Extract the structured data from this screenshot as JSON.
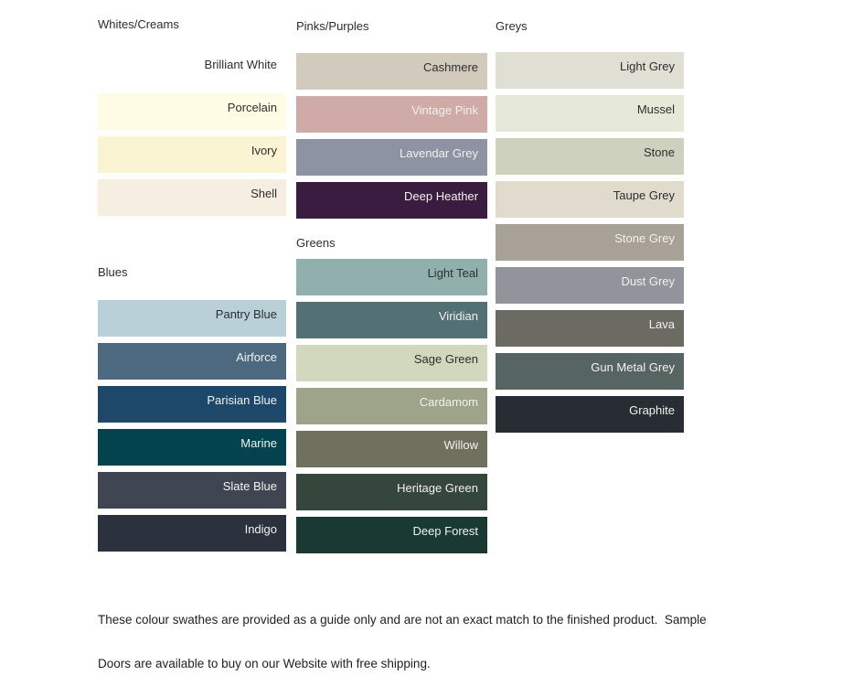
{
  "columns": [
    {
      "sections": [
        {
          "id": "whites-creams",
          "title": "Whites/Creams",
          "swatches": [
            {
              "name": "Brilliant White",
              "color": "#ffffff",
              "label_color": "#2e2e2e"
            },
            {
              "name": "Porcelain",
              "color": "#fefce4",
              "label_color": "#2e2e2e"
            },
            {
              "name": "Ivory",
              "color": "#faf4d2",
              "label_color": "#2e2e2e"
            },
            {
              "name": "Shell",
              "color": "#f6efe1",
              "label_color": "#2e2e2e"
            }
          ]
        },
        {
          "id": "blues",
          "title": "Blues",
          "swatches": [
            {
              "name": "Pantry Blue",
              "color": "#b9d0d9",
              "label_color": "#2e2e2e"
            },
            {
              "name": "Airforce",
              "color": "#4d6980",
              "label_color": "#f2f1ef"
            },
            {
              "name": "Parisian Blue",
              "color": "#1e4869",
              "label_color": "#f2f1ef"
            },
            {
              "name": "Marine",
              "color": "#03424f",
              "label_color": "#f2f1ef"
            },
            {
              "name": "Slate Blue",
              "color": "#3f4652",
              "label_color": "#f2f1ef"
            },
            {
              "name": "Indigo",
              "color": "#2b323d",
              "label_color": "#f2f1ef"
            }
          ]
        }
      ]
    },
    {
      "sections": [
        {
          "id": "pinks-purples",
          "title": "Pinks/Purples",
          "swatches": [
            {
              "name": "Cashmere",
              "color": "#d2cbbd",
              "label_color": "#2e2e2e"
            },
            {
              "name": "Vintage Pink",
              "color": "#d0aaa7",
              "label_color": "#f2f1ef"
            },
            {
              "name": "Lavendar Grey",
              "color": "#8e93a4",
              "label_color": "#f2f1ef"
            },
            {
              "name": "Deep Heather",
              "color": "#3b1c41",
              "label_color": "#f2f1ef"
            }
          ]
        },
        {
          "id": "greens",
          "title": "Greens",
          "swatches": [
            {
              "name": "Light Teal",
              "color": "#90afad",
              "label_color": "#2e2e2e"
            },
            {
              "name": "Viridian",
              "color": "#537174",
              "label_color": "#f2f1ef"
            },
            {
              "name": "Sage Green",
              "color": "#d1d8be",
              "label_color": "#2e2e2e"
            },
            {
              "name": "Cardamom",
              "color": "#9ea48a",
              "label_color": "#f2f1ef"
            },
            {
              "name": "Willow",
              "color": "#70705e",
              "label_color": "#f2f1ef"
            },
            {
              "name": "Heritage Green",
              "color": "#35473d",
              "label_color": "#f2f1ef"
            },
            {
              "name": "Deep Forest",
              "color": "#193932",
              "label_color": "#f2f1ef"
            }
          ]
        }
      ]
    },
    {
      "sections": [
        {
          "id": "greys",
          "title": "Greys",
          "swatches": [
            {
              "name": "Light Grey",
              "color": "#dfdfd3",
              "label_color": "#2e2e2e"
            },
            {
              "name": "Mussel",
              "color": "#e6e9d8",
              "label_color": "#2e2e2e"
            },
            {
              "name": "Stone",
              "color": "#cdd1be",
              "label_color": "#2e2e2e"
            },
            {
              "name": "Taupe Grey",
              "color": "#e1dbcd",
              "label_color": "#2e2e2e"
            },
            {
              "name": "Stone Grey",
              "color": "#a7a197",
              "label_color": "#f2f1ef"
            },
            {
              "name": "Dust Grey",
              "color": "#91949b",
              "label_color": "#f2f1ef"
            },
            {
              "name": "Lava",
              "color": "#6b6b63",
              "label_color": "#f2f1ef"
            },
            {
              "name": "Gun Metal Grey",
              "color": "#576562",
              "label_color": "#f2f1ef"
            },
            {
              "name": "Graphite",
              "color": "#272d32",
              "label_color": "#f2f1ef"
            }
          ]
        }
      ]
    }
  ],
  "footer": {
    "lines": [
      "These colour swathes are provided as a guide only and are not an exact match to the finished product.  Sample",
      "Doors are available to buy on our Website with free shipping."
    ]
  }
}
